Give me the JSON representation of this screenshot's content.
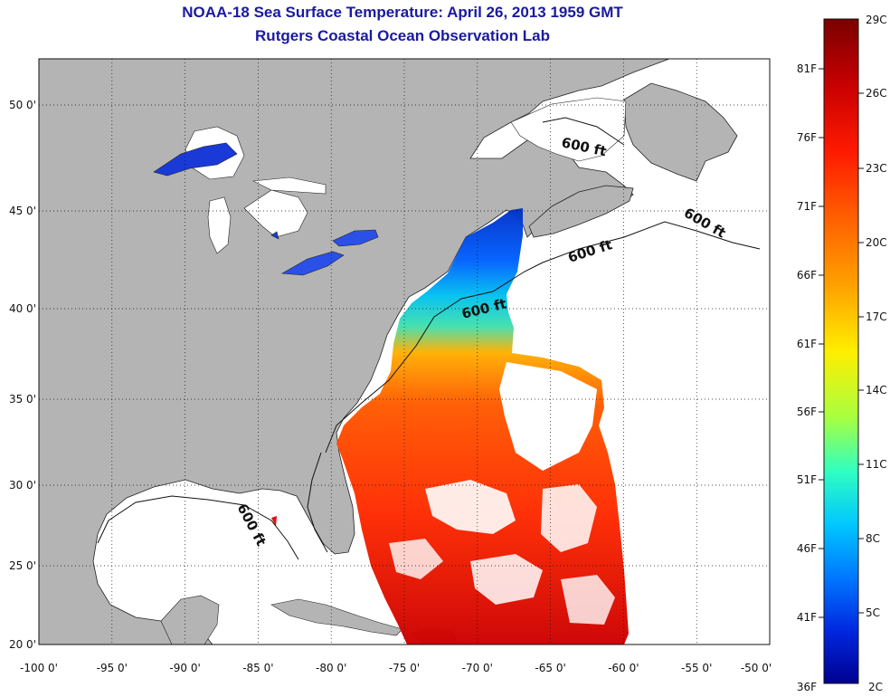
{
  "header": {
    "title": "NOAA-18 Sea Surface Temperature:  April 26, 2013 1959 GMT",
    "subtitle": "Rutgers Coastal Ocean Observation Lab"
  },
  "map": {
    "lon_range": [
      -100,
      -50
    ],
    "lat_range": [
      20,
      52.5
    ],
    "lon_ticks": [
      "-100 0'",
      "-95 0'",
      "-90 0'",
      "-85 0'",
      "-80 0'",
      "-75 0'",
      "-70 0'",
      "-65 0'",
      "-60 0'",
      "-55 0'",
      "-50 0'"
    ],
    "lat_ticks": [
      "20 0'",
      "25 0'",
      "30 0'",
      "35 0'",
      "40 0'",
      "45 0'",
      "50 0'"
    ],
    "isobath_labels": [
      "600 ft",
      "600 ft",
      "600 ft",
      "600 ft",
      "600 ft"
    ],
    "grid": "dotted",
    "land_color": "#b4b4b4",
    "water_color": "#ffffff"
  },
  "colorbar": {
    "celsius": [
      "29C",
      "26C",
      "23C",
      "20C",
      "17C",
      "14C",
      "11C",
      "8C",
      "5C",
      "2C"
    ],
    "fahrenheit": [
      "81F",
      "76F",
      "71F",
      "66F",
      "61F",
      "56F",
      "51F",
      "46F",
      "41F",
      "36F"
    ],
    "range_c": [
      2,
      29
    ],
    "colors": [
      "#7a0000",
      "#d40000",
      "#ff3000",
      "#ff8c00",
      "#ffe000",
      "#b0ff40",
      "#30ffd0",
      "#00b8ff",
      "#0060ff",
      "#0010d0",
      "#000090"
    ]
  }
}
